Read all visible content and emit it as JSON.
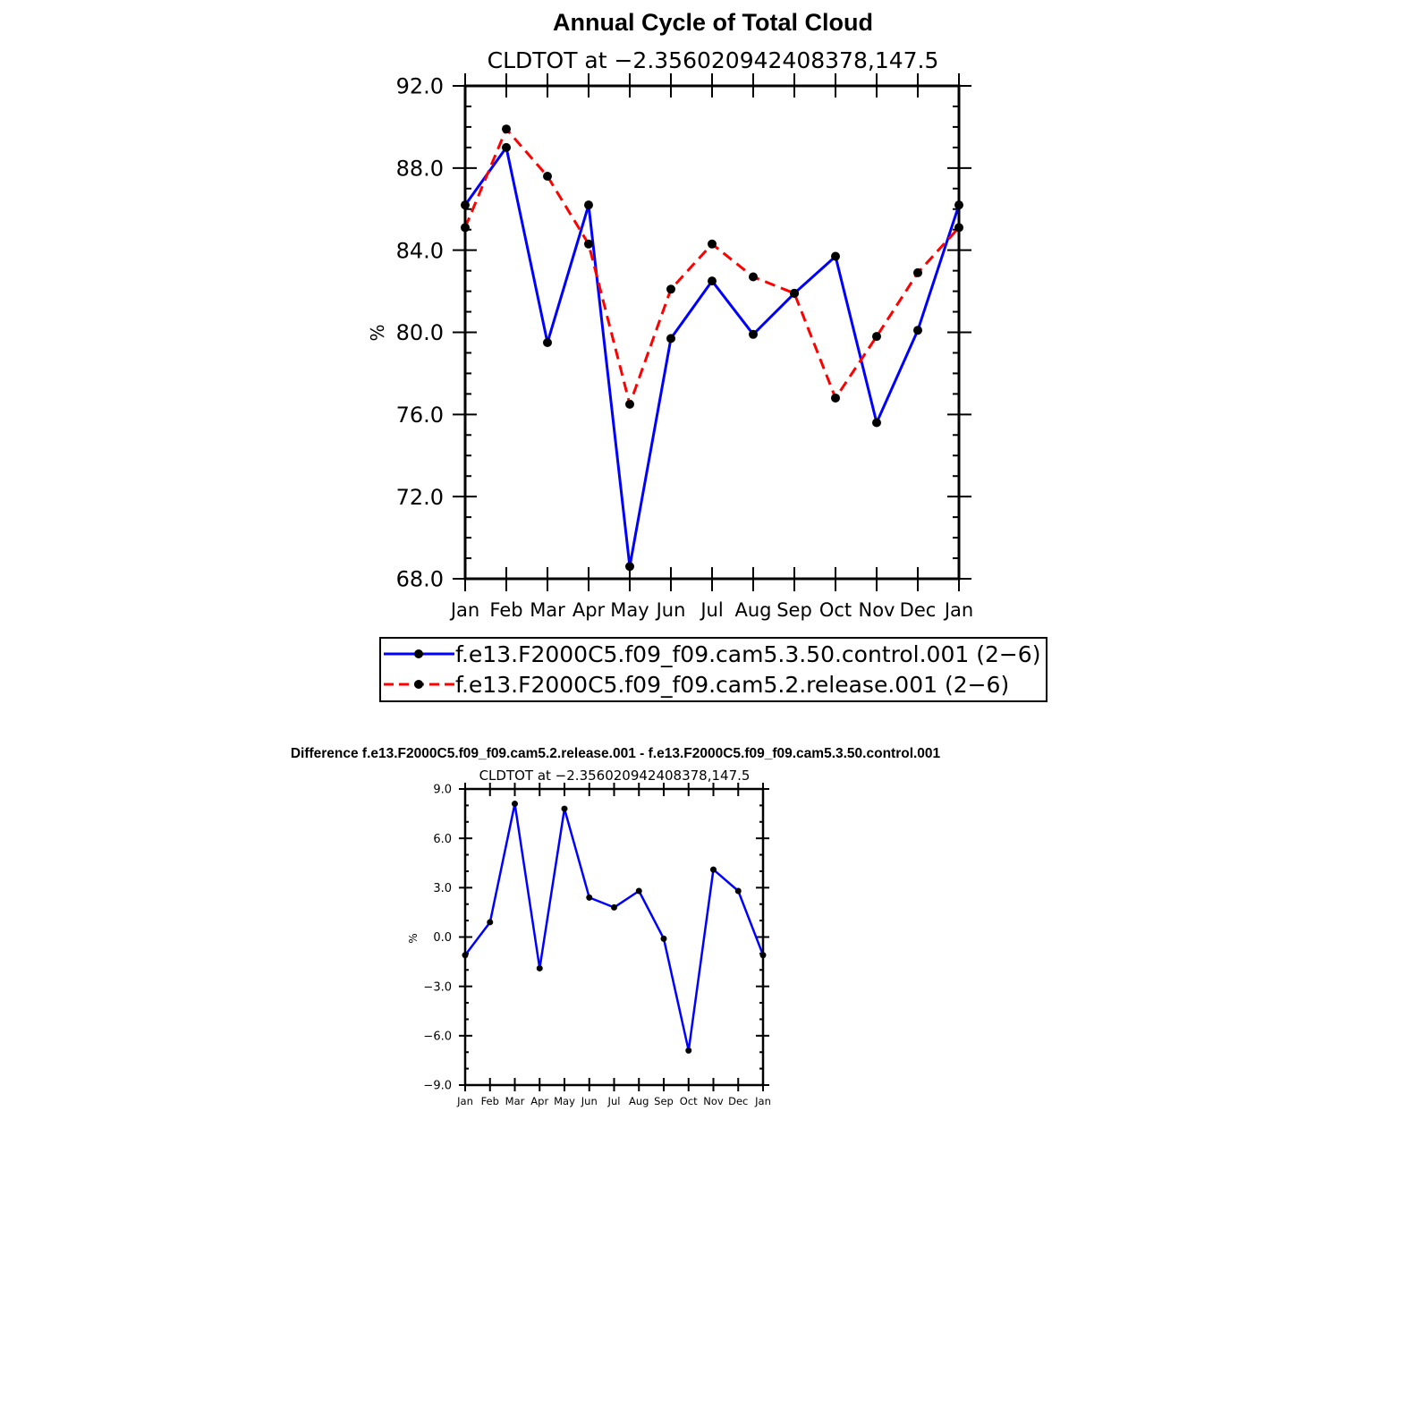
{
  "chart_data": [
    {
      "type": "line",
      "title": "Annual Cycle of Total Cloud",
      "subtitle": "CLDTOT at −2.356020942408378,147.5",
      "xlabel": "",
      "ylabel": "%",
      "categories": [
        "Jan",
        "Feb",
        "Mar",
        "Apr",
        "May",
        "Jun",
        "Jul",
        "Aug",
        "Sep",
        "Oct",
        "Nov",
        "Dec",
        "Jan"
      ],
      "ylim": [
        68.0,
        92.0
      ],
      "yticks": [
        68.0,
        72.0,
        76.0,
        80.0,
        84.0,
        88.0,
        92.0
      ],
      "ytick_labels": [
        "68.0",
        "72.0",
        "76.0",
        "80.0",
        "84.0",
        "88.0",
        "92.0"
      ],
      "grid": false,
      "legend_position": "bottom",
      "series": [
        {
          "name": "f.e13.F2000C5.f09_f09.cam5.3.50.control.001 (2−6)",
          "color": "#0000ff",
          "dash": "solid",
          "values": [
            86.2,
            89.0,
            79.5,
            86.2,
            68.6,
            79.7,
            82.5,
            79.9,
            81.9,
            83.7,
            75.6,
            80.1,
            86.2
          ]
        },
        {
          "name": "f.e13.F2000C5.f09_f09.cam5.2.release.001 (2−6)",
          "color": "#ff0000",
          "dash": "dashed",
          "values": [
            85.1,
            89.9,
            87.6,
            84.3,
            76.5,
            82.1,
            84.3,
            82.7,
            81.9,
            76.8,
            79.8,
            82.9,
            85.1
          ]
        }
      ]
    },
    {
      "type": "line",
      "title": "Difference f.e13.F2000C5.f09_f09.cam5.2.release.001 - f.e13.F2000C5.f09_f09.cam5.3.50.control.001",
      "subtitle": "CLDTOT at −2.356020942408378,147.5",
      "xlabel": "",
      "ylabel": "%",
      "categories": [
        "Jan",
        "Feb",
        "Mar",
        "Apr",
        "May",
        "Jun",
        "Jul",
        "Aug",
        "Sep",
        "Oct",
        "Nov",
        "Dec",
        "Jan"
      ],
      "ylim": [
        -9.0,
        9.0
      ],
      "yticks": [
        -9.0,
        -6.0,
        -3.0,
        0.0,
        3.0,
        6.0,
        9.0
      ],
      "ytick_labels": [
        "−9.0",
        "−6.0",
        "−3.0",
        "0.0",
        "3.0",
        "6.0",
        "9.0"
      ],
      "grid": false,
      "series": [
        {
          "name": "Difference",
          "color": "#0000ff",
          "dash": "solid",
          "values": [
            -1.1,
            0.9,
            8.1,
            -1.9,
            7.8,
            2.4,
            1.8,
            2.8,
            -0.1,
            -6.9,
            4.1,
            2.8,
            -1.1
          ]
        }
      ]
    }
  ]
}
